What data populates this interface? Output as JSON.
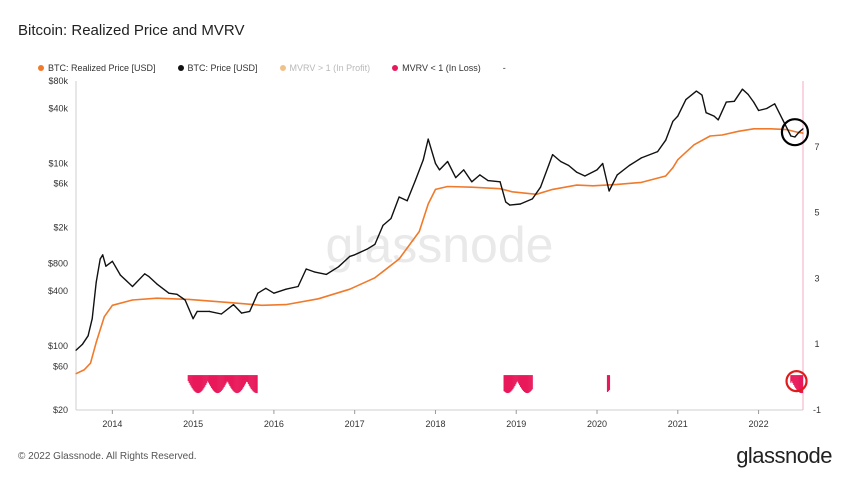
{
  "page": {
    "title": "Bitcoin: Realized Price and MVRV",
    "footer": "© 2022 Glassnode. All Rights Reserved.",
    "brand": "glassnode",
    "watermark": "glassnode"
  },
  "legend": [
    {
      "label": "BTC: Realized Price [USD]",
      "color": "#f07a2b",
      "faded": false
    },
    {
      "label": "BTC: Price [USD]",
      "color": "#111111",
      "faded": false
    },
    {
      "label": "MVRV > 1 (In Profit)",
      "color": "#f2c18a",
      "faded": true
    },
    {
      "label": "MVRV < 1 (In Loss)",
      "color": "#e8195b",
      "faded": false
    },
    {
      "label": "-",
      "color": "",
      "faded": false
    }
  ],
  "chart_data": {
    "type": "line",
    "title": "Bitcoin: Realized Price and MVRV",
    "x_ticks": [
      "2014",
      "2015",
      "2016",
      "2017",
      "2018",
      "2019",
      "2020",
      "2021",
      "2022"
    ],
    "xlim": [
      2013.6,
      2022.6
    ],
    "y_left": {
      "scale": "log",
      "ylim": [
        20,
        80000
      ],
      "ticks": [
        {
          "label": "$80k",
          "value": 80000
        },
        {
          "label": "$40k",
          "value": 40000
        },
        {
          "label": "$10k",
          "value": 10000
        },
        {
          "label": "$6k",
          "value": 6000
        },
        {
          "label": "$2k",
          "value": 2000
        },
        {
          "label": "$800",
          "value": 800
        },
        {
          "label": "$400",
          "value": 400
        },
        {
          "label": "$100",
          "value": 100
        },
        {
          "label": "$60",
          "value": 60
        },
        {
          "label": "$20",
          "value": 20
        }
      ]
    },
    "y_right": {
      "scale": "linear",
      "ylim": [
        -1,
        9
      ],
      "ticks": [
        {
          "label": "7",
          "value": 7
        },
        {
          "label": "5",
          "value": 5
        },
        {
          "label": "3",
          "value": 3
        },
        {
          "label": "1",
          "value": 1
        },
        {
          "label": "-1",
          "value": -1
        }
      ]
    },
    "series": [
      {
        "name": "BTC: Price [USD]",
        "color": "#111111",
        "points": [
          [
            2013.6,
            90
          ],
          [
            2013.68,
            105
          ],
          [
            2013.75,
            130
          ],
          [
            2013.8,
            200
          ],
          [
            2013.85,
            500
          ],
          [
            2013.9,
            900
          ],
          [
            2013.93,
            1000
          ],
          [
            2013.97,
            750
          ],
          [
            2014.05,
            850
          ],
          [
            2014.15,
            600
          ],
          [
            2014.3,
            450
          ],
          [
            2014.45,
            620
          ],
          [
            2014.5,
            580
          ],
          [
            2014.6,
            480
          ],
          [
            2014.75,
            380
          ],
          [
            2014.85,
            370
          ],
          [
            2014.95,
            320
          ],
          [
            2015.05,
            200
          ],
          [
            2015.1,
            240
          ],
          [
            2015.25,
            240
          ],
          [
            2015.4,
            225
          ],
          [
            2015.55,
            285
          ],
          [
            2015.65,
            230
          ],
          [
            2015.75,
            240
          ],
          [
            2015.85,
            380
          ],
          [
            2015.95,
            430
          ],
          [
            2016.05,
            380
          ],
          [
            2016.2,
            420
          ],
          [
            2016.35,
            450
          ],
          [
            2016.45,
            700
          ],
          [
            2016.55,
            650
          ],
          [
            2016.7,
            610
          ],
          [
            2016.85,
            740
          ],
          [
            2016.99,
            960
          ],
          [
            2017.05,
            1000
          ],
          [
            2017.2,
            1150
          ],
          [
            2017.3,
            1300
          ],
          [
            2017.4,
            2100
          ],
          [
            2017.5,
            2500
          ],
          [
            2017.6,
            4300
          ],
          [
            2017.7,
            3900
          ],
          [
            2017.8,
            6500
          ],
          [
            2017.9,
            11000
          ],
          [
            2017.96,
            18500
          ],
          [
            2018.05,
            10000
          ],
          [
            2018.1,
            8500
          ],
          [
            2018.2,
            10500
          ],
          [
            2018.3,
            7000
          ],
          [
            2018.4,
            8500
          ],
          [
            2018.5,
            6300
          ],
          [
            2018.6,
            7500
          ],
          [
            2018.7,
            6500
          ],
          [
            2018.85,
            6300
          ],
          [
            2018.92,
            3800
          ],
          [
            2018.97,
            3500
          ],
          [
            2019.1,
            3600
          ],
          [
            2019.25,
            4100
          ],
          [
            2019.35,
            5500
          ],
          [
            2019.45,
            9500
          ],
          [
            2019.5,
            12500
          ],
          [
            2019.6,
            10500
          ],
          [
            2019.7,
            9500
          ],
          [
            2019.8,
            8000
          ],
          [
            2019.9,
            7300
          ],
          [
            2020.05,
            8500
          ],
          [
            2020.12,
            10000
          ],
          [
            2020.2,
            5000
          ],
          [
            2020.3,
            7500
          ],
          [
            2020.45,
            9500
          ],
          [
            2020.6,
            11500
          ],
          [
            2020.8,
            13500
          ],
          [
            2020.9,
            18000
          ],
          [
            2020.99,
            29000
          ],
          [
            2021.05,
            33000
          ],
          [
            2021.15,
            50000
          ],
          [
            2021.28,
            62000
          ],
          [
            2021.35,
            56000
          ],
          [
            2021.4,
            36000
          ],
          [
            2021.5,
            33000
          ],
          [
            2021.55,
            30000
          ],
          [
            2021.65,
            47000
          ],
          [
            2021.75,
            48000
          ],
          [
            2021.85,
            65000
          ],
          [
            2021.92,
            57000
          ],
          [
            2021.99,
            47000
          ],
          [
            2022.05,
            38000
          ],
          [
            2022.15,
            40000
          ],
          [
            2022.25,
            45000
          ],
          [
            2022.35,
            30000
          ],
          [
            2022.45,
            20000
          ],
          [
            2022.5,
            19500
          ],
          [
            2022.55,
            22000
          ],
          [
            2022.6,
            24000
          ]
        ]
      },
      {
        "name": "BTC: Realized Price [USD]",
        "color": "#f07a2b",
        "points": [
          [
            2013.6,
            50
          ],
          [
            2013.7,
            55
          ],
          [
            2013.78,
            65
          ],
          [
            2013.85,
            110
          ],
          [
            2013.95,
            210
          ],
          [
            2014.05,
            280
          ],
          [
            2014.3,
            320
          ],
          [
            2014.6,
            335
          ],
          [
            2015.0,
            325
          ],
          [
            2015.5,
            300
          ],
          [
            2015.9,
            280
          ],
          [
            2016.2,
            285
          ],
          [
            2016.6,
            330
          ],
          [
            2016.99,
            420
          ],
          [
            2017.3,
            560
          ],
          [
            2017.6,
            900
          ],
          [
            2017.85,
            1800
          ],
          [
            2017.96,
            3600
          ],
          [
            2018.05,
            5200
          ],
          [
            2018.2,
            5600
          ],
          [
            2018.5,
            5500
          ],
          [
            2018.85,
            5300
          ],
          [
            2019.0,
            4900
          ],
          [
            2019.3,
            4600
          ],
          [
            2019.5,
            5200
          ],
          [
            2019.8,
            5800
          ],
          [
            2020.0,
            5700
          ],
          [
            2020.3,
            5900
          ],
          [
            2020.6,
            6200
          ],
          [
            2020.9,
            7300
          ],
          [
            2020.99,
            9000
          ],
          [
            2021.05,
            11000
          ],
          [
            2021.25,
            16000
          ],
          [
            2021.45,
            20000
          ],
          [
            2021.6,
            20500
          ],
          [
            2021.8,
            22500
          ],
          [
            2021.99,
            24000
          ],
          [
            2022.2,
            24000
          ],
          [
            2022.4,
            23500
          ],
          [
            2022.55,
            21800
          ],
          [
            2022.6,
            21500
          ]
        ]
      }
    ],
    "mvrv_loss_periods": [
      [
        2014.99,
        2015.85
      ],
      [
        2018.9,
        2019.25
      ],
      [
        2020.18,
        2020.21
      ],
      [
        2022.45,
        2022.6
      ]
    ],
    "annotations": [
      "circle around 2022 price",
      "red circle around 2022 MVRV < 1"
    ]
  }
}
